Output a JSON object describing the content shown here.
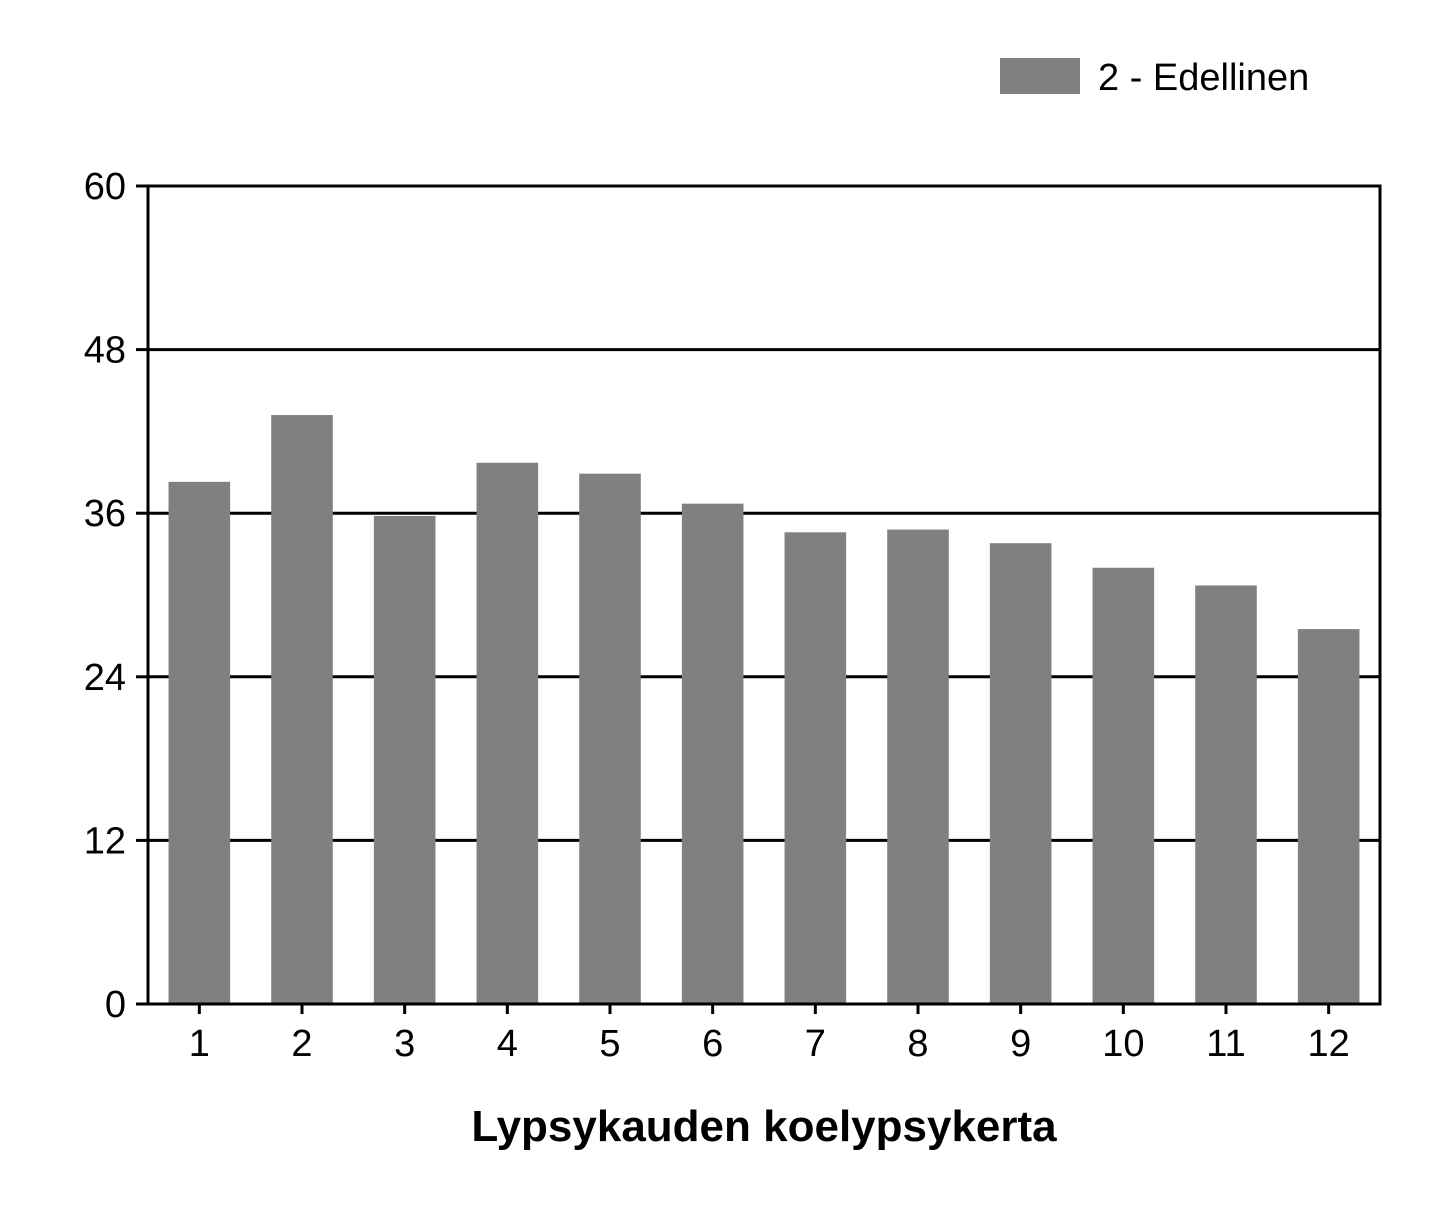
{
  "chart_data": {
    "type": "bar",
    "categories": [
      "1",
      "2",
      "3",
      "4",
      "5",
      "6",
      "7",
      "8",
      "9",
      "10",
      "11",
      "12"
    ],
    "series": [
      {
        "name": "2 - Edellinen",
        "values": [
          38.3,
          43.2,
          35.8,
          39.7,
          38.9,
          36.7,
          34.6,
          34.8,
          33.8,
          32.0,
          30.7,
          27.5
        ],
        "color": "#808080"
      }
    ],
    "xlabel": "Lypsykauden koelypsykerta",
    "ylabel": "",
    "ylim": [
      0,
      60
    ],
    "yticks": [
      "0",
      "12",
      "24",
      "36",
      "48",
      "60"
    ],
    "grid": true,
    "legend_position": "top-right"
  }
}
